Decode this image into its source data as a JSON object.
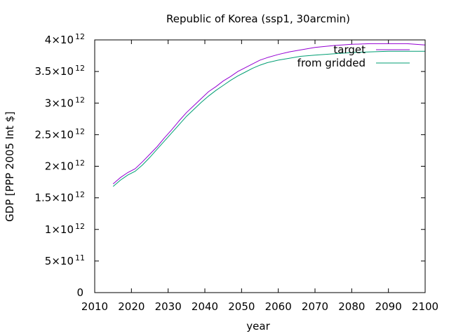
{
  "chart_data": {
    "type": "line",
    "title": "Republic of Korea (ssp1, 30arcmin)",
    "xlabel": "year",
    "ylabel": "GDP [PPP 2005 Int $]",
    "xlim": [
      2010,
      2100
    ],
    "ylim": [
      0,
      4000000000000
    ],
    "grid": false,
    "legend_position": "top-right",
    "x_ticks": [
      {
        "value": 2010,
        "label": "2010"
      },
      {
        "value": 2020,
        "label": "2020"
      },
      {
        "value": 2030,
        "label": "2030"
      },
      {
        "value": 2040,
        "label": "2040"
      },
      {
        "value": 2050,
        "label": "2050"
      },
      {
        "value": 2060,
        "label": "2060"
      },
      {
        "value": 2070,
        "label": "2070"
      },
      {
        "value": 2080,
        "label": "2080"
      },
      {
        "value": 2090,
        "label": "2090"
      },
      {
        "value": 2100,
        "label": "2100"
      }
    ],
    "y_ticks": [
      {
        "value": 0,
        "mantissa": "0",
        "exp": ""
      },
      {
        "value": 500000000000,
        "mantissa": "5×10",
        "exp": "11"
      },
      {
        "value": 1000000000000,
        "mantissa": "1×10",
        "exp": "12"
      },
      {
        "value": 1500000000000,
        "mantissa": "1.5×10",
        "exp": "12"
      },
      {
        "value": 2000000000000,
        "mantissa": "2×10",
        "exp": "12"
      },
      {
        "value": 2500000000000,
        "mantissa": "2.5×10",
        "exp": "12"
      },
      {
        "value": 3000000000000,
        "mantissa": "3×10",
        "exp": "12"
      },
      {
        "value": 3500000000000,
        "mantissa": "3.5×10",
        "exp": "12"
      },
      {
        "value": 4000000000000,
        "mantissa": "4×10",
        "exp": "12"
      }
    ],
    "x": [
      2015,
      2017,
      2019,
      2021,
      2023,
      2025,
      2027,
      2029,
      2031,
      2033,
      2035,
      2037,
      2039,
      2041,
      2043,
      2045,
      2047,
      2049,
      2051,
      2053,
      2055,
      2057,
      2060,
      2063,
      2066,
      2070,
      2075,
      2080,
      2085,
      2090,
      2095,
      2100
    ],
    "series": [
      {
        "name": "target",
        "color": "#9400d3",
        "values": [
          1720000000000,
          1820000000000,
          1900000000000,
          1960000000000,
          2070000000000,
          2190000000000,
          2310000000000,
          2450000000000,
          2580000000000,
          2720000000000,
          2850000000000,
          2960000000000,
          3070000000000,
          3180000000000,
          3260000000000,
          3350000000000,
          3420000000000,
          3500000000000,
          3560000000000,
          3620000000000,
          3680000000000,
          3720000000000,
          3770000000000,
          3810000000000,
          3840000000000,
          3880000000000,
          3910000000000,
          3930000000000,
          3940000000000,
          3940000000000,
          3940000000000,
          3920000000000
        ]
      },
      {
        "name": "from gridded",
        "color": "#009e73",
        "values": [
          1680000000000,
          1780000000000,
          1860000000000,
          1920000000000,
          2020000000000,
          2140000000000,
          2270000000000,
          2400000000000,
          2530000000000,
          2660000000000,
          2790000000000,
          2900000000000,
          3010000000000,
          3110000000000,
          3200000000000,
          3280000000000,
          3360000000000,
          3430000000000,
          3490000000000,
          3550000000000,
          3600000000000,
          3640000000000,
          3680000000000,
          3710000000000,
          3740000000000,
          3760000000000,
          3780000000000,
          3800000000000,
          3810000000000,
          3820000000000,
          3820000000000,
          3820000000000
        ]
      }
    ]
  }
}
